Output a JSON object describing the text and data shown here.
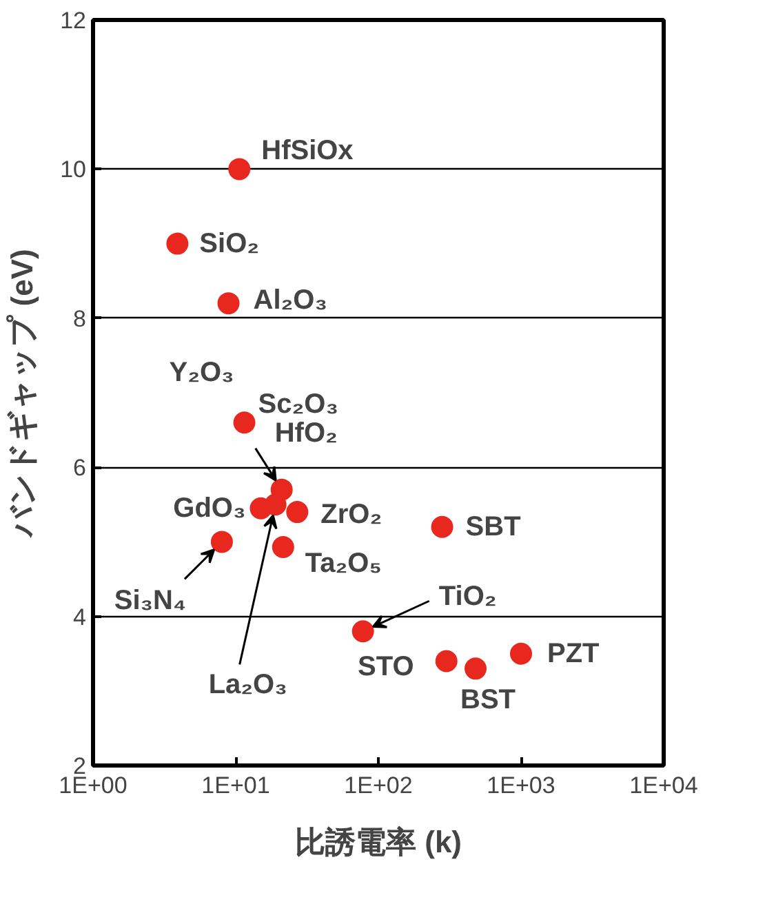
{
  "chart_data": {
    "type": "scatter",
    "xlabel": "比誘電率 (k)",
    "ylabel": "バンドギャップ (eV)",
    "log": "x",
    "xlim": [
      1,
      10000
    ],
    "ylim": [
      2,
      12
    ],
    "xticks": [
      {
        "value": 1,
        "label": "1E+00"
      },
      {
        "value": 10,
        "label": "1E+01"
      },
      {
        "value": 100,
        "label": "1E+02"
      },
      {
        "value": 1000,
        "label": "1E+03"
      },
      {
        "value": 10000,
        "label": "1E+04"
      }
    ],
    "yticks": [
      2,
      4,
      6,
      8,
      10,
      12
    ],
    "grid": "y",
    "marker": "circle",
    "x": [
      10.6,
      3.9,
      8.9,
      11.5,
      21,
      15,
      19,
      27,
      21.5,
      8,
      280,
      78,
      300,
      480,
      1000
    ],
    "series": [
      {
        "color": "#e8281e",
        "values": [
          10,
          9,
          8.2,
          6.6,
          5.7,
          5.45,
          5.5,
          5.4,
          4.93,
          5.0,
          5.2,
          3.8,
          3.4,
          3.3,
          3.5
        ]
      }
    ],
    "annotations": [
      {
        "text": "HfSiOx",
        "x": 10.6,
        "y": 10
      },
      {
        "text": "SiO₂",
        "x": 3.9,
        "y": 9
      },
      {
        "text": "Al₂O₃",
        "x": 8.9,
        "y": 8.2
      },
      {
        "text": "Y₂O₃",
        "x": 11.5,
        "y": 6.6
      },
      {
        "text": "Sc₂O₃",
        "x": 11.5,
        "y": 6.6
      },
      {
        "text": "HfO₂",
        "x": 21,
        "y": 5.7
      },
      {
        "text": "GdO₃",
        "x": 15,
        "y": 5.45
      },
      {
        "text": "La₂O₃",
        "x": 19,
        "y": 5.5
      },
      {
        "text": "ZrO₂",
        "x": 27,
        "y": 5.4
      },
      {
        "text": "Ta₂O₅",
        "x": 21.5,
        "y": 4.93
      },
      {
        "text": "Si₃N₄",
        "x": 8,
        "y": 5.0
      },
      {
        "text": "SBT",
        "x": 280,
        "y": 5.2
      },
      {
        "text": "TiO₂",
        "x": 78,
        "y": 3.8
      },
      {
        "text": "STO",
        "x": 300,
        "y": 3.4
      },
      {
        "text": "BST",
        "x": 480,
        "y": 3.3
      },
      {
        "text": "PZT",
        "x": 1000,
        "y": 3.5
      }
    ]
  }
}
